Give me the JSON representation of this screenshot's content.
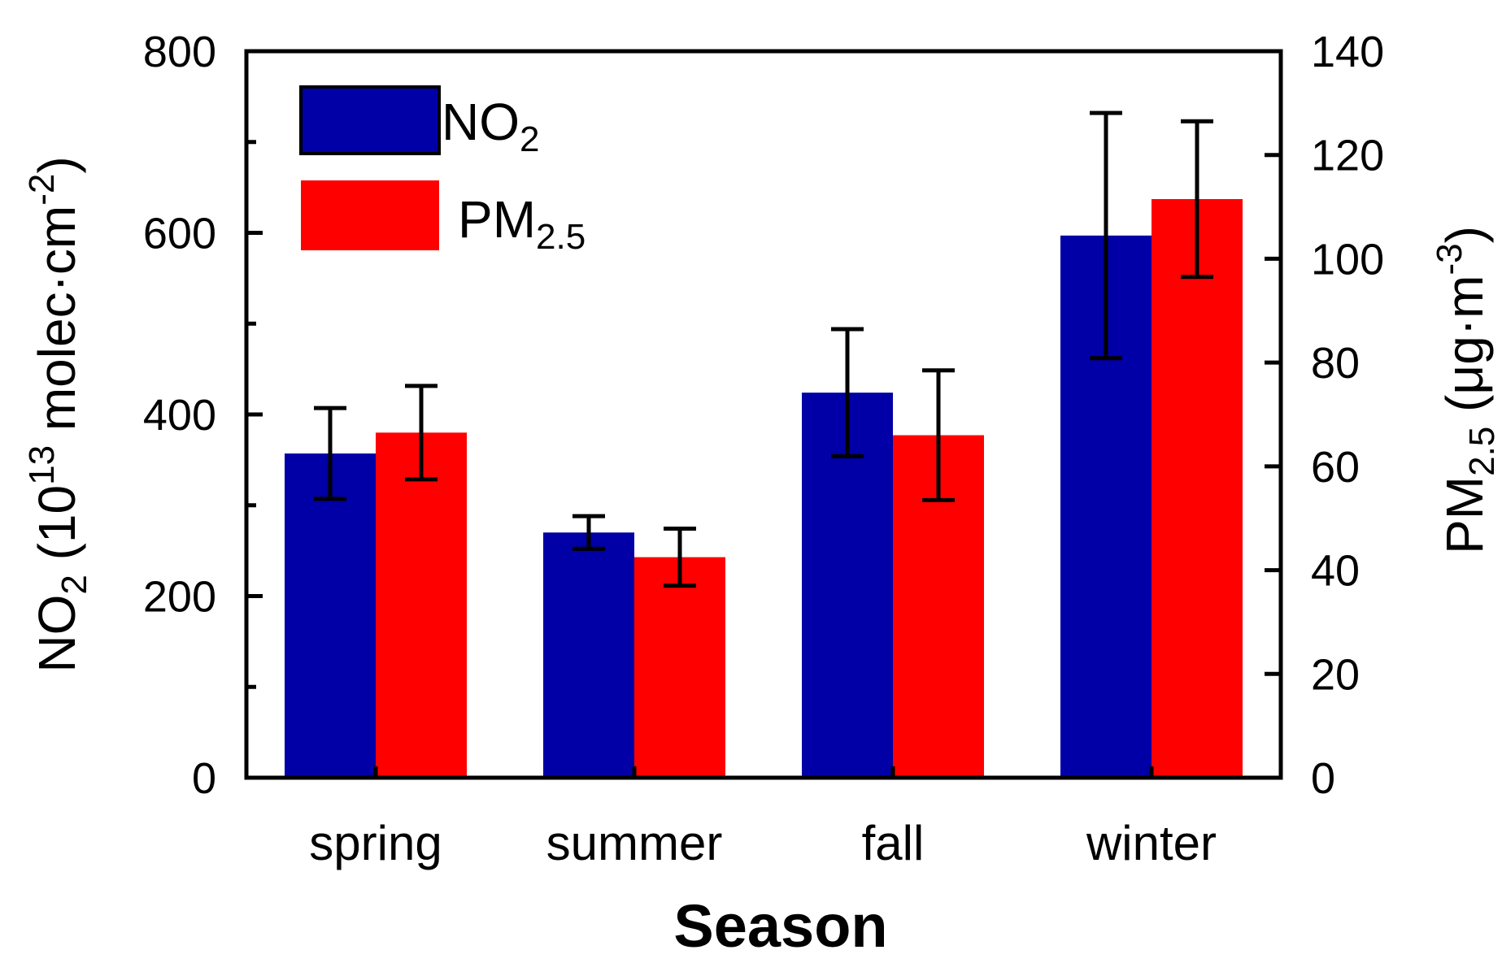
{
  "chart_data": {
    "type": "bar",
    "categories": [
      "spring",
      "summer",
      "fall",
      "winter"
    ],
    "xlabel": "Season",
    "y_left": {
      "label_main": "NO",
      "label_sub": "2",
      "label_unit_open": " (10",
      "label_unit_sup": "13",
      "label_unit_mid": " molec·cm",
      "label_unit_sup2": "-2",
      "label_unit_close": ")",
      "range": [
        0,
        800
      ],
      "ticks": [
        0,
        200,
        400,
        600,
        800
      ],
      "minor_ticks": [
        100,
        300,
        500,
        700
      ]
    },
    "y_right": {
      "label_main": "PM",
      "label_sub": "2.5",
      "label_unit_open": " (μg·m",
      "label_unit_sup": "-3",
      "label_unit_close": ")",
      "range": [
        0,
        140
      ],
      "ticks": [
        0,
        20,
        40,
        60,
        80,
        100,
        120,
        140
      ]
    },
    "series": [
      {
        "name": "NO2",
        "legend_main": "NO",
        "legend_sub": "2",
        "axis": "left",
        "color": "#0000A6",
        "values": [
          357,
          270,
          424,
          597
        ],
        "error": [
          50,
          18,
          70,
          135
        ]
      },
      {
        "name": "PM2.5",
        "legend_main": "PM",
        "legend_sub": "2.5",
        "axis": "right",
        "color": "#FF0000",
        "values": [
          66.5,
          42.5,
          66,
          111.5
        ],
        "error": [
          9,
          5.5,
          12.5,
          15
        ]
      }
    ],
    "legend_position": "top-left",
    "grid": false
  }
}
